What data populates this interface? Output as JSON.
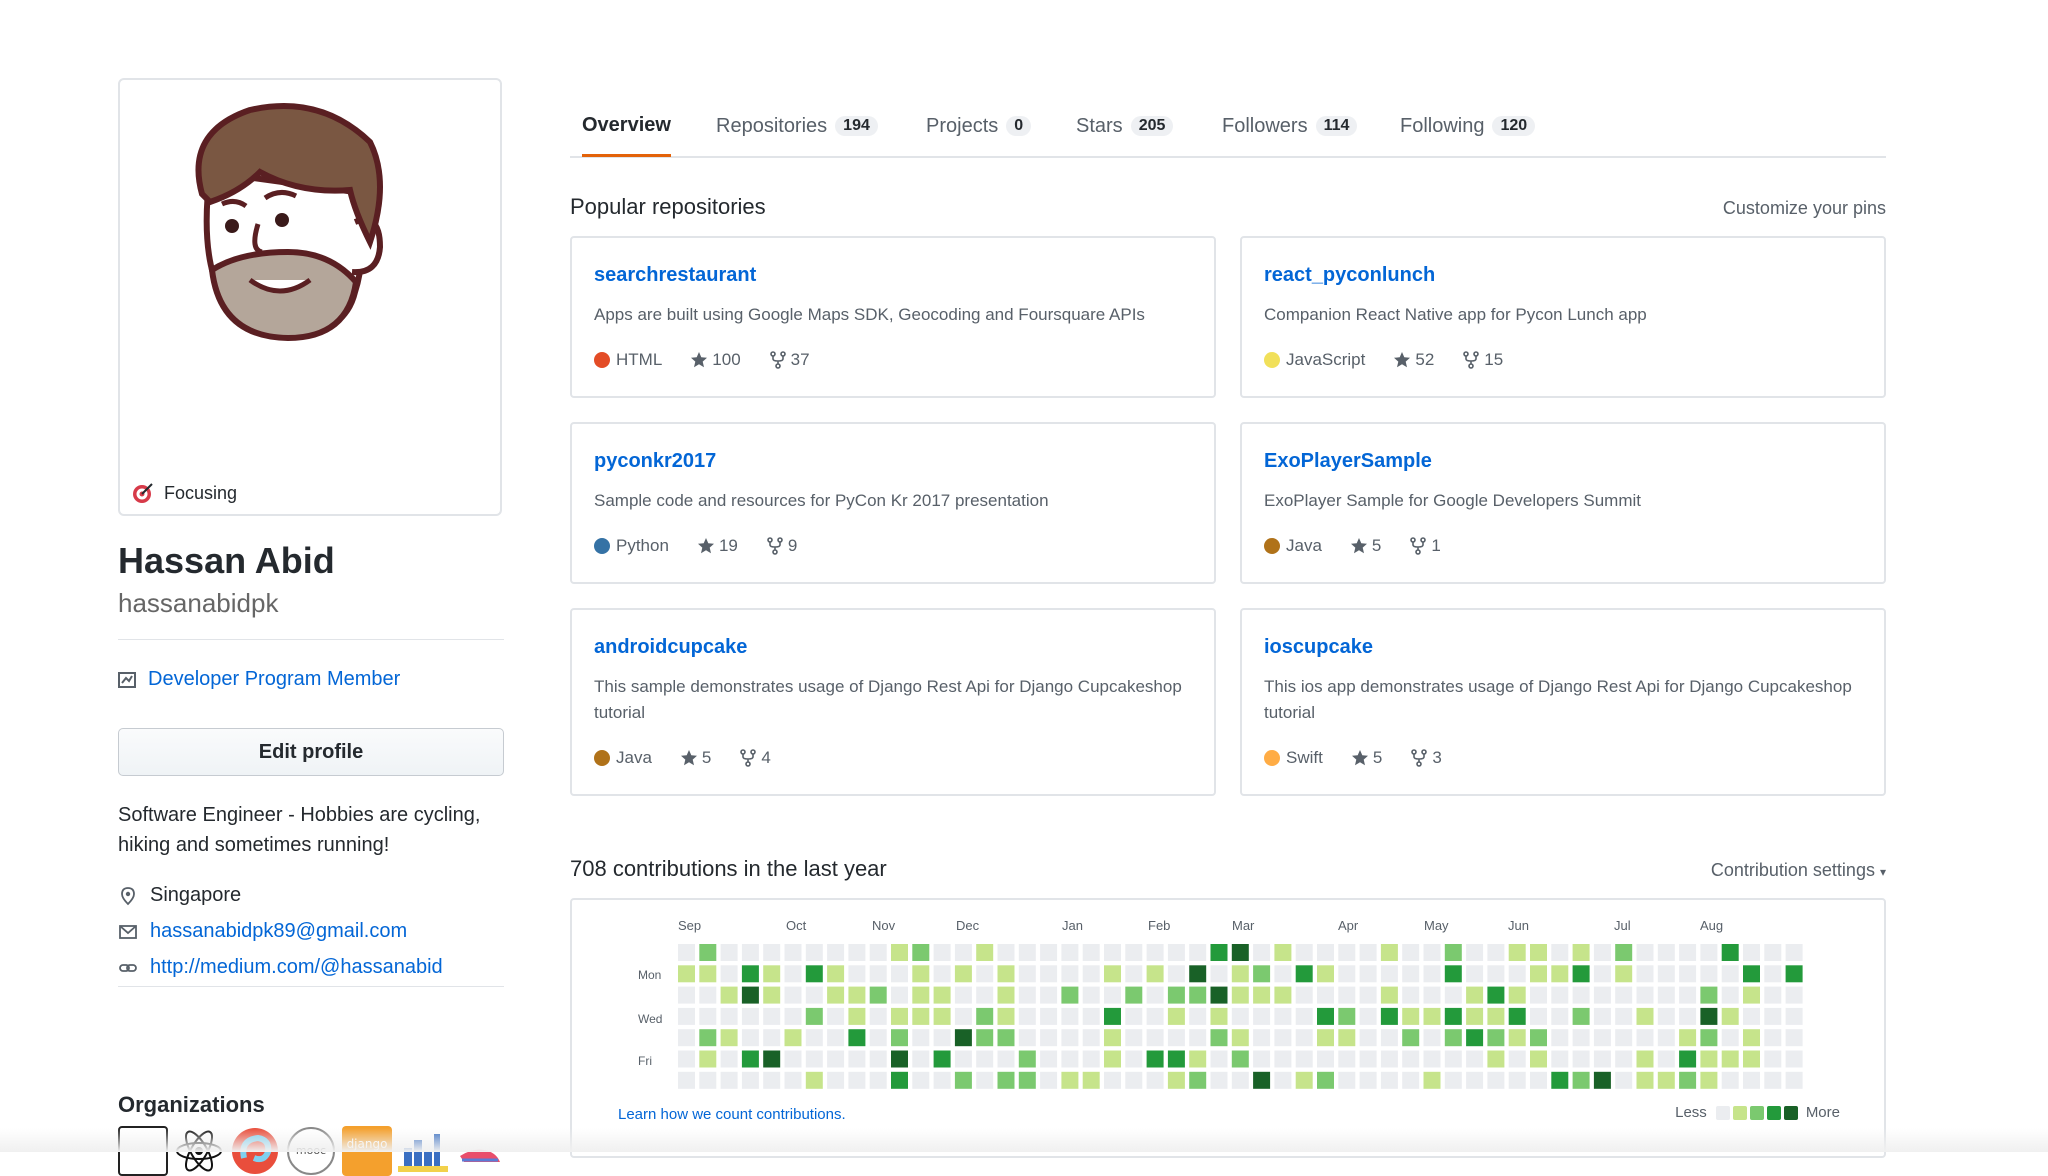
{
  "profile": {
    "status": "Focusing",
    "name": "Hassan Abid",
    "login": "hassanabidpk",
    "badge": "Developer Program Member",
    "edit_button": "Edit profile",
    "bio": "Software Engineer - Hobbies are cycling, hiking and sometimes running!",
    "location": "Singapore",
    "email": "hassanabidpk89@gmail.com",
    "website": "http://medium.com/@hassanabid",
    "organizations_title": "Organizations",
    "org_icons": [
      "organization-logo-icon",
      "atom-logo-icon",
      "swirl-logo-icon",
      "mooc-circle-logo-icon",
      "django-girls-logo-icon",
      "city-logo-icon",
      "shoe-logo-icon"
    ]
  },
  "tabs": [
    {
      "label": "Overview",
      "count": null,
      "active": true
    },
    {
      "label": "Repositories",
      "count": "194"
    },
    {
      "label": "Projects",
      "count": "0"
    },
    {
      "label": "Stars",
      "count": "205"
    },
    {
      "label": "Followers",
      "count": "114"
    },
    {
      "label": "Following",
      "count": "120"
    }
  ],
  "popular": {
    "title": "Popular repositories",
    "customize": "Customize your pins",
    "repos": [
      {
        "name": "searchrestaurant",
        "desc": "Apps are built using Google Maps SDK, Geocoding and Foursquare APIs",
        "lang": "HTML",
        "color": "#e34c26",
        "stars": "100",
        "forks": "37"
      },
      {
        "name": "react_pyconlunch",
        "desc": "Companion React Native app for Pycon Lunch app",
        "lang": "JavaScript",
        "color": "#f1e05a",
        "stars": "52",
        "forks": "15"
      },
      {
        "name": "pyconkr2017",
        "desc": "Sample code and resources for PyCon Kr 2017 presentation",
        "lang": "Python",
        "color": "#3572A5",
        "stars": "19",
        "forks": "9"
      },
      {
        "name": "ExoPlayerSample",
        "desc": "ExoPlayer Sample for Google Developers Summit",
        "lang": "Java",
        "color": "#b07219",
        "stars": "5",
        "forks": "1"
      },
      {
        "name": "androidcupcake",
        "desc": "This sample demonstrates usage of Django Rest Api for Django Cupcakeshop tutorial",
        "lang": "Java",
        "color": "#b07219",
        "stars": "5",
        "forks": "4"
      },
      {
        "name": "ioscupcake",
        "desc": "This ios app demonstrates usage of Django Rest Api for Django Cupcakeshop tutorial",
        "lang": "Swift",
        "color": "#ffac45",
        "stars": "5",
        "forks": "3"
      }
    ]
  },
  "contributions": {
    "title": "708 contributions in the last year",
    "settings": "Contribution settings",
    "months": [
      "Sep",
      "Oct",
      "Nov",
      "Dec",
      "Jan",
      "Feb",
      "Mar",
      "Apr",
      "May",
      "Jun",
      "Jul",
      "Aug"
    ],
    "days": [
      "Mon",
      "Wed",
      "Fri"
    ],
    "learn_link": "Learn how we count contributions.",
    "less": "Less",
    "more": "More",
    "colors": [
      "#ebedf0",
      "#c6e48b",
      "#7bc96f",
      "#239a3b",
      "#196127"
    ]
  }
}
